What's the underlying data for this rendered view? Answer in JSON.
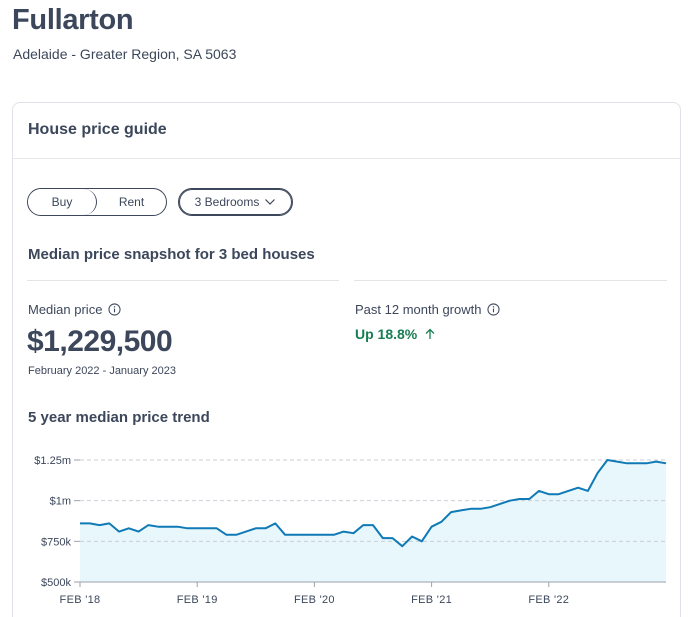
{
  "suburb": {
    "title": "Fullarton",
    "subtitle": "Adelaide - Greater Region, SA 5063"
  },
  "card": {
    "title": "House price guide",
    "buy_label": "Buy",
    "rent_label": "Rent",
    "bedrooms_label": "3 Bedrooms",
    "snapshot_title": "Median price snapshot for 3 bed houses",
    "median_label": "Median price",
    "median_value": "$1,229,500",
    "median_period": "February 2022 - January 2023",
    "growth_label": "Past 12 month growth",
    "growth_value": "Up 18.8%",
    "trend_title": "5 year median price trend"
  },
  "icons": {
    "info": "info-circle-icon",
    "growth": "arrow-up-icon",
    "dropdown": "chevron-down-icon"
  },
  "colors": {
    "text": "#3c475b",
    "growth": "#177e53",
    "line": "#0f7ab5",
    "area": "#e8f7fc"
  },
  "chart_data": {
    "type": "area",
    "title": "5 year median price trend",
    "ylim": [
      500000,
      1250000
    ],
    "yticks": [
      {
        "value": 1250000,
        "label": "$1.25m"
      },
      {
        "value": 1000000,
        "label": "$1m"
      },
      {
        "value": 750000,
        "label": "$750k"
      },
      {
        "value": 500000,
        "label": "$500k"
      }
    ],
    "xticks": [
      {
        "label": "FEB '18",
        "index": 0
      },
      {
        "label": "FEB '19",
        "index": 12
      },
      {
        "label": "FEB '20",
        "index": 24
      },
      {
        "label": "FEB '21",
        "index": 36
      },
      {
        "label": "FEB '22",
        "index": 48
      }
    ],
    "grid": true,
    "series": [
      {
        "values": [
          860000,
          860000,
          850000,
          860000,
          810000,
          830000,
          810000,
          850000,
          840000,
          840000,
          840000,
          830000,
          830000,
          830000,
          830000,
          790000,
          790000,
          810000,
          830000,
          830000,
          860000,
          790000,
          790000,
          790000,
          790000,
          790000,
          790000,
          810000,
          800000,
          850000,
          850000,
          770000,
          770000,
          720000,
          780000,
          750000,
          840000,
          870000,
          930000,
          940000,
          950000,
          950000,
          960000,
          980000,
          1000000,
          1010000,
          1010000,
          1060000,
          1040000,
          1040000,
          1060000,
          1080000,
          1060000,
          1170000,
          1250000,
          1240000,
          1230000,
          1230000,
          1230000,
          1240000,
          1230000
        ]
      }
    ]
  }
}
